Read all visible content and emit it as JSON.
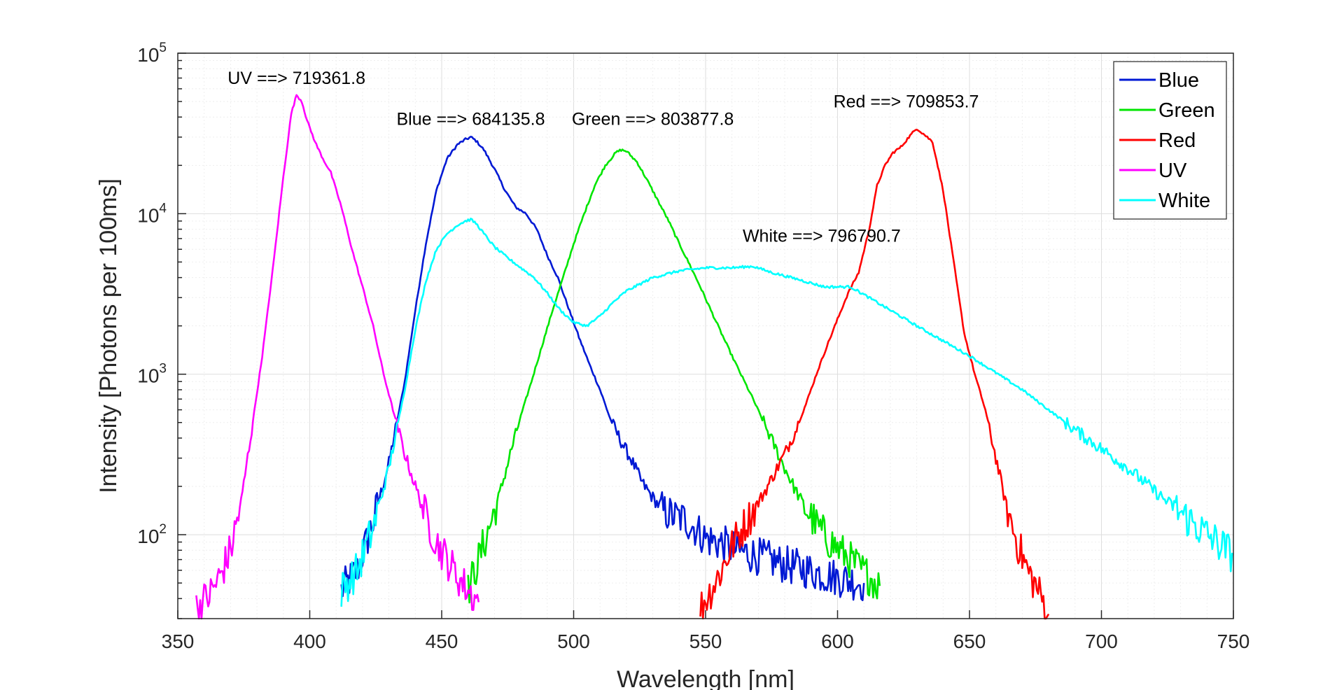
{
  "chart_data": {
    "type": "line",
    "title": "",
    "xlabel": "Wavelength [nm]",
    "ylabel": "Intensity [Photons per 100ms]",
    "xlim": [
      350,
      750
    ],
    "ylim": [
      30,
      100000
    ],
    "yscale": "log",
    "grid": true,
    "minor_grid": true,
    "legend_position": "top-right",
    "xticks": [
      "350",
      "400",
      "450",
      "500",
      "550",
      "600",
      "650",
      "700",
      "750"
    ],
    "xtick_values": [
      350,
      400,
      450,
      500,
      550,
      600,
      650,
      700,
      750
    ],
    "yticks": [
      {
        "value": 100,
        "base": "10",
        "exp": "2"
      },
      {
        "value": 1000,
        "base": "10",
        "exp": "3"
      },
      {
        "value": 10000,
        "base": "10",
        "exp": "4"
      },
      {
        "value": 100000,
        "base": "10",
        "exp": "5"
      }
    ],
    "series": [
      {
        "name": "Blue",
        "color": "#0019d4",
        "x": [
          412,
          418,
          424,
          430,
          436,
          440,
          444,
          448,
          452,
          456,
          459,
          461,
          463,
          466,
          470,
          474,
          478,
          482,
          486,
          490,
          494,
          498,
          502,
          506,
          510,
          514,
          518,
          522,
          526,
          530,
          534,
          538,
          542,
          546,
          550,
          556,
          562,
          568,
          574,
          580,
          586,
          592,
          598,
          604,
          610
        ],
        "y": [
          45,
          60,
          120,
          280,
          900,
          2500,
          6500,
          14000,
          22000,
          27000,
          29000,
          30000,
          28500,
          25000,
          19000,
          14000,
          11000,
          10000,
          8000,
          5500,
          4000,
          2600,
          1700,
          1150,
          800,
          520,
          380,
          290,
          210,
          170,
          140,
          130,
          125,
          110,
          95,
          88,
          80,
          75,
          70,
          65,
          62,
          58,
          55,
          52,
          50
        ]
      },
      {
        "name": "Green",
        "color": "#00e600",
        "x": [
          460,
          464,
          468,
          472,
          476,
          480,
          484,
          488,
          492,
          496,
          500,
          504,
          508,
          512,
          516,
          518,
          520,
          524,
          528,
          532,
          536,
          540,
          544,
          548,
          552,
          556,
          560,
          564,
          568,
          572,
          576,
          580,
          584,
          588,
          592,
          596,
          600,
          604,
          608,
          612,
          616
        ],
        "y": [
          45,
          70,
          110,
          180,
          320,
          550,
          900,
          1500,
          2500,
          4000,
          6500,
          10000,
          15000,
          20000,
          24000,
          25000,
          24500,
          21000,
          16000,
          12000,
          9000,
          6500,
          4800,
          3500,
          2500,
          1800,
          1300,
          950,
          700,
          500,
          360,
          260,
          190,
          145,
          115,
          95,
          82,
          72,
          62,
          55,
          48
        ]
      },
      {
        "name": "Red",
        "color": "#ff0000",
        "x": [
          548,
          552,
          556,
          560,
          564,
          568,
          572,
          576,
          580,
          584,
          588,
          592,
          596,
          600,
          604,
          608,
          612,
          615,
          618,
          621,
          624,
          627,
          630,
          633,
          636,
          640,
          644,
          648,
          652,
          656,
          660,
          664,
          668,
          672,
          676,
          680
        ],
        "y": [
          35,
          45,
          60,
          85,
          110,
          140,
          180,
          240,
          320,
          440,
          650,
          1000,
          1500,
          2200,
          3200,
          4300,
          8000,
          15000,
          20000,
          24000,
          26000,
          30000,
          34000,
          31000,
          28000,
          14000,
          5000,
          1800,
          1000,
          600,
          300,
          150,
          90,
          60,
          45,
          32
        ]
      },
      {
        "name": "UV",
        "color": "#ff00ff",
        "x": [
          357,
          362,
          366,
          370,
          374,
          378,
          382,
          386,
          390,
          393,
          395,
          397,
          399,
          402,
          405,
          408,
          412,
          416,
          420,
          424,
          428,
          432,
          436,
          440,
          444,
          448,
          452,
          456,
          460,
          464
        ],
        "y": [
          35,
          42,
          55,
          80,
          160,
          450,
          1300,
          4500,
          17000,
          42000,
          55000,
          50000,
          38000,
          28000,
          22000,
          18000,
          11000,
          6000,
          3500,
          2000,
          1000,
          560,
          320,
          200,
          130,
          90,
          70,
          55,
          45,
          38
        ]
      },
      {
        "name": "White",
        "color": "#00ffff",
        "x": [
          412,
          418,
          424,
          430,
          436,
          440,
          444,
          448,
          452,
          456,
          459,
          461,
          463,
          466,
          470,
          475,
          480,
          485,
          490,
          495,
          500,
          505,
          510,
          515,
          520,
          530,
          540,
          550,
          560,
          568,
          575,
          585,
          595,
          605,
          615,
          630,
          650,
          670,
          690,
          710,
          725,
          740,
          750
        ],
        "y": [
          45,
          60,
          110,
          260,
          800,
          1900,
          3800,
          6000,
          7500,
          8500,
          9000,
          9200,
          8700,
          7500,
          6200,
          5300,
          4600,
          4000,
          3200,
          2500,
          2100,
          2000,
          2300,
          2800,
          3300,
          4000,
          4400,
          4600,
          4600,
          4700,
          4300,
          3900,
          3500,
          3500,
          2800,
          2000,
          1300,
          800,
          450,
          260,
          160,
          100,
          75
        ]
      }
    ],
    "annotations": [
      {
        "text": "UV ==> 719361.8",
        "x": 395,
        "y": 56000
      },
      {
        "text": "Blue ==> 684135.8",
        "x": 461,
        "y": 31000
      },
      {
        "text": "Green ==> 803877.8",
        "x": 530,
        "y": 31000
      },
      {
        "text": "Red ==> 709853.7",
        "x": 626,
        "y": 40000
      },
      {
        "text": "White ==> 796790.7",
        "x": 594,
        "y": 5800
      }
    ]
  }
}
